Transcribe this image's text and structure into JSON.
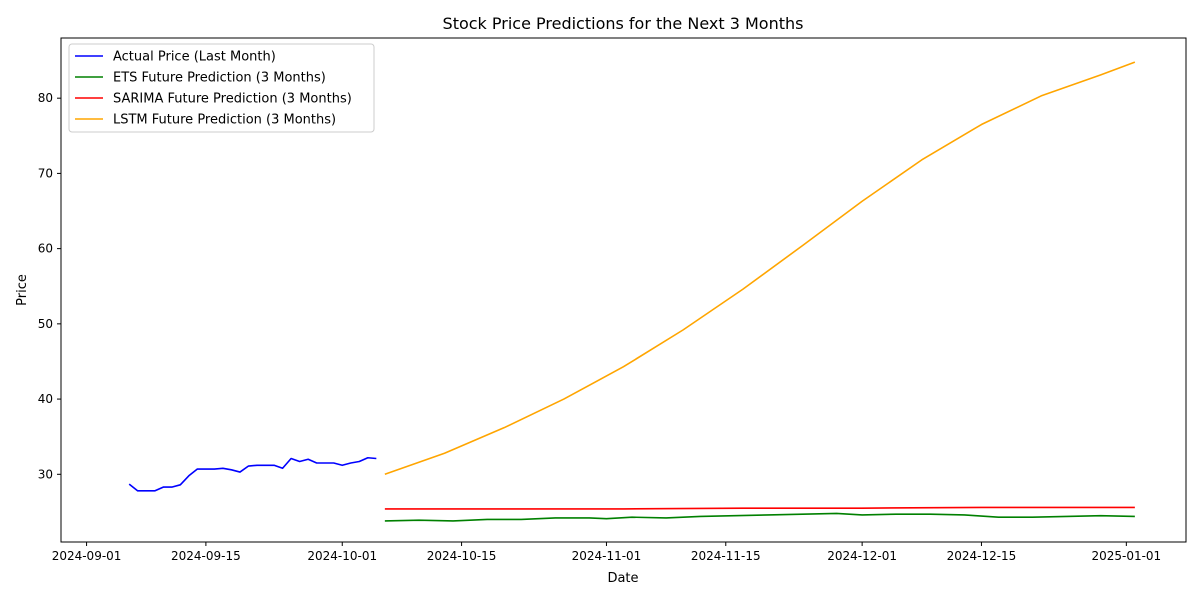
{
  "chart_data": {
    "type": "line",
    "title": "Stock Price Predictions for the Next 3 Months",
    "xlabel": "Date",
    "ylabel": "Price",
    "x_ticks": [
      "2024-09-01",
      "2024-09-15",
      "2024-10-01",
      "2024-10-15",
      "2024-11-01",
      "2024-11-15",
      "2024-12-01",
      "2024-12-15",
      "2025-01-01"
    ],
    "y_ticks": [
      30,
      40,
      50,
      60,
      70,
      80
    ],
    "xlim": [
      "2024-08-29",
      "2025-01-08"
    ],
    "ylim": [
      21,
      88
    ],
    "grid": false,
    "legend_position": "top-left",
    "series": [
      {
        "name": "Actual Price (Last Month)",
        "color": "#0000ff",
        "points": [
          [
            "2024-09-06",
            28.7
          ],
          [
            "2024-09-07",
            27.8
          ],
          [
            "2024-09-08",
            27.8
          ],
          [
            "2024-09-09",
            27.8
          ],
          [
            "2024-09-10",
            28.3
          ],
          [
            "2024-09-11",
            28.3
          ],
          [
            "2024-09-12",
            28.6
          ],
          [
            "2024-09-13",
            29.8
          ],
          [
            "2024-09-14",
            30.7
          ],
          [
            "2024-09-15",
            30.7
          ],
          [
            "2024-09-16",
            30.7
          ],
          [
            "2024-09-17",
            30.8
          ],
          [
            "2024-09-18",
            30.6
          ],
          [
            "2024-09-19",
            30.3
          ],
          [
            "2024-09-20",
            31.1
          ],
          [
            "2024-09-21",
            31.2
          ],
          [
            "2024-09-22",
            31.2
          ],
          [
            "2024-09-23",
            31.2
          ],
          [
            "2024-09-24",
            30.8
          ],
          [
            "2024-09-25",
            32.1
          ],
          [
            "2024-09-26",
            31.7
          ],
          [
            "2024-09-27",
            32.0
          ],
          [
            "2024-09-28",
            31.5
          ],
          [
            "2024-09-29",
            31.5
          ],
          [
            "2024-09-30",
            31.5
          ],
          [
            "2024-10-01",
            31.2
          ],
          [
            "2024-10-02",
            31.5
          ],
          [
            "2024-10-03",
            31.7
          ],
          [
            "2024-10-04",
            32.2
          ],
          [
            "2024-10-05",
            32.1
          ]
        ]
      },
      {
        "name": "ETS Future Prediction (3 Months)",
        "color": "#008000",
        "points": [
          [
            "2024-10-06",
            23.8
          ],
          [
            "2024-10-10",
            23.9
          ],
          [
            "2024-10-14",
            23.8
          ],
          [
            "2024-10-18",
            24.0
          ],
          [
            "2024-10-22",
            24.0
          ],
          [
            "2024-10-26",
            24.2
          ],
          [
            "2024-10-30",
            24.2
          ],
          [
            "2024-11-01",
            24.1
          ],
          [
            "2024-11-04",
            24.3
          ],
          [
            "2024-11-08",
            24.2
          ],
          [
            "2024-11-12",
            24.4
          ],
          [
            "2024-11-16",
            24.5
          ],
          [
            "2024-11-20",
            24.6
          ],
          [
            "2024-11-24",
            24.7
          ],
          [
            "2024-11-28",
            24.8
          ],
          [
            "2024-12-01",
            24.6
          ],
          [
            "2024-12-05",
            24.7
          ],
          [
            "2024-12-09",
            24.7
          ],
          [
            "2024-12-13",
            24.6
          ],
          [
            "2024-12-17",
            24.3
          ],
          [
            "2024-12-21",
            24.3
          ],
          [
            "2024-12-25",
            24.4
          ],
          [
            "2024-12-29",
            24.5
          ],
          [
            "2025-01-02",
            24.4
          ]
        ]
      },
      {
        "name": "SARIMA Future Prediction (3 Months)",
        "color": "#ff0000",
        "points": [
          [
            "2024-10-06",
            25.4
          ],
          [
            "2024-10-20",
            25.4
          ],
          [
            "2024-11-03",
            25.4
          ],
          [
            "2024-11-17",
            25.5
          ],
          [
            "2024-12-01",
            25.5
          ],
          [
            "2024-12-15",
            25.6
          ],
          [
            "2025-01-02",
            25.6
          ]
        ]
      },
      {
        "name": "LSTM Future Prediction (3 Months)",
        "color": "#ffa500",
        "points": [
          [
            "2024-10-06",
            30.0
          ],
          [
            "2024-10-13",
            32.8
          ],
          [
            "2024-10-20",
            36.2
          ],
          [
            "2024-10-27",
            40.0
          ],
          [
            "2024-11-03",
            44.3
          ],
          [
            "2024-11-10",
            49.2
          ],
          [
            "2024-11-17",
            54.6
          ],
          [
            "2024-11-24",
            60.4
          ],
          [
            "2024-12-01",
            66.3
          ],
          [
            "2024-12-08",
            71.8
          ],
          [
            "2024-12-15",
            76.5
          ],
          [
            "2024-12-22",
            80.3
          ],
          [
            "2024-12-29",
            83.1
          ],
          [
            "2025-01-02",
            84.8
          ]
        ]
      }
    ]
  }
}
